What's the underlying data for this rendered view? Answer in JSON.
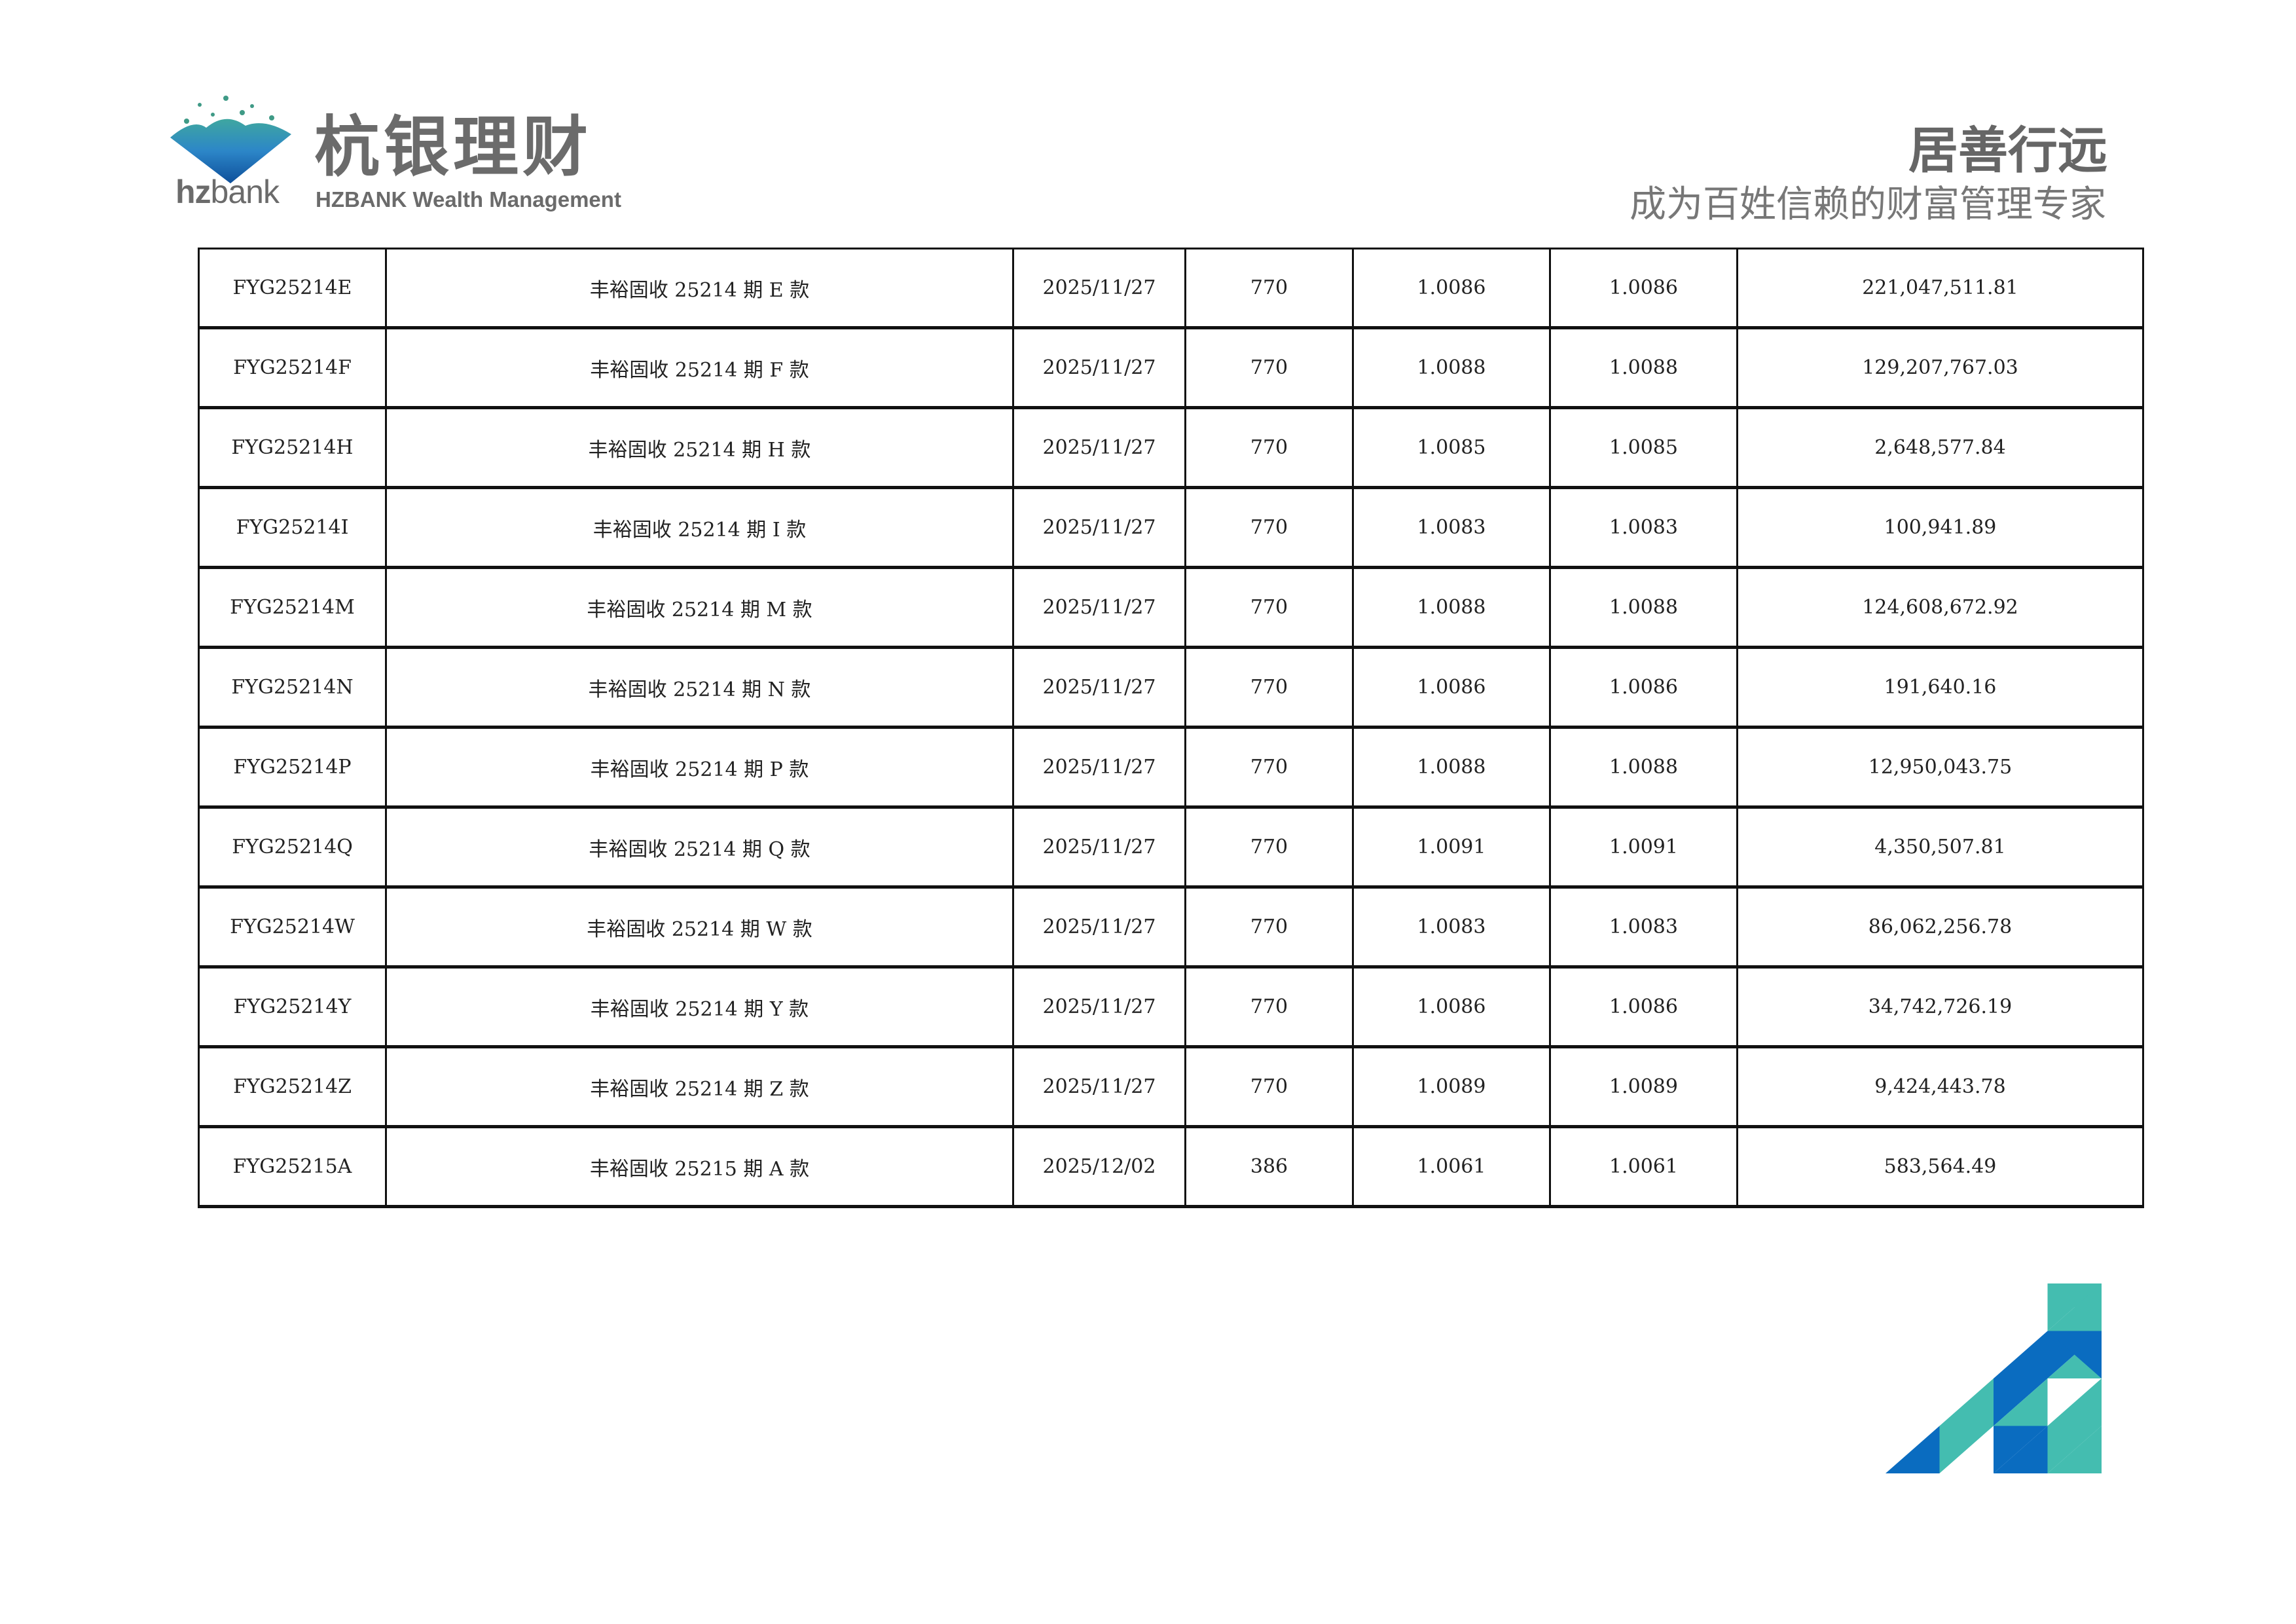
{
  "header": {
    "brand_cn": "杭银理财",
    "brand_en": "HZBANK Wealth Management",
    "hz_bold": "hz",
    "hz_light": "bank",
    "slogan": "居善行远",
    "tagline": "成为百姓信赖的财富管理专家"
  },
  "colors": {
    "teal": "#44bdb0",
    "blue": "#0a6cc0",
    "gray_text": "#6b6b6b"
  },
  "table": {
    "rows": [
      [
        "FYG25214E",
        "丰裕固收 25214 期 E 款",
        "2025/11/27",
        "770",
        "1.0086",
        "1.0086",
        "221,047,511.81"
      ],
      [
        "FYG25214F",
        "丰裕固收 25214 期 F 款",
        "2025/11/27",
        "770",
        "1.0088",
        "1.0088",
        "129,207,767.03"
      ],
      [
        "FYG25214H",
        "丰裕固收 25214 期 H 款",
        "2025/11/27",
        "770",
        "1.0085",
        "1.0085",
        "2,648,577.84"
      ],
      [
        "FYG25214I",
        "丰裕固收 25214 期 I 款",
        "2025/11/27",
        "770",
        "1.0083",
        "1.0083",
        "100,941.89"
      ],
      [
        "FYG25214M",
        "丰裕固收 25214 期 M 款",
        "2025/11/27",
        "770",
        "1.0088",
        "1.0088",
        "124,608,672.92"
      ],
      [
        "FYG25214N",
        "丰裕固收 25214 期 N 款",
        "2025/11/27",
        "770",
        "1.0086",
        "1.0086",
        "191,640.16"
      ],
      [
        "FYG25214P",
        "丰裕固收 25214 期 P 款",
        "2025/11/27",
        "770",
        "1.0088",
        "1.0088",
        "12,950,043.75"
      ],
      [
        "FYG25214Q",
        "丰裕固收 25214 期 Q 款",
        "2025/11/27",
        "770",
        "1.0091",
        "1.0091",
        "4,350,507.81"
      ],
      [
        "FYG25214W",
        "丰裕固收 25214 期 W 款",
        "2025/11/27",
        "770",
        "1.0083",
        "1.0083",
        "86,062,256.78"
      ],
      [
        "FYG25214Y",
        "丰裕固收 25214 期 Y 款",
        "2025/11/27",
        "770",
        "1.0086",
        "1.0086",
        "34,742,726.19"
      ],
      [
        "FYG25214Z",
        "丰裕固收 25214 期 Z 款",
        "2025/11/27",
        "770",
        "1.0089",
        "1.0089",
        "9,424,443.78"
      ],
      [
        "FYG25215A",
        "丰裕固收 25215 期 A 款",
        "2025/12/02",
        "386",
        "1.0061",
        "1.0061",
        "583,564.49"
      ]
    ]
  }
}
